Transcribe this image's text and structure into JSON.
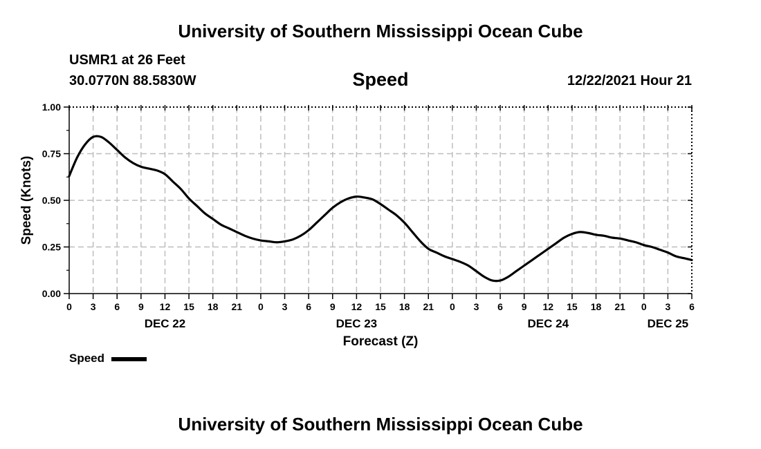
{
  "header": {
    "title": "University of Southern Mississippi Ocean Cube",
    "station": "USMR1 at 26 Feet",
    "coordinates": "30.0770N  88.5830W",
    "parameter": "Speed",
    "datetime": "12/22/2021 Hour 21"
  },
  "footer": {
    "title": "University of Southern Mississippi Ocean Cube"
  },
  "legend": {
    "label": "Speed"
  },
  "chart_data": {
    "type": "line",
    "title": "Speed",
    "xlabel": "Forecast (Z)",
    "ylabel": "Speed (Knots)",
    "ylim": [
      0,
      1.0
    ],
    "yticks": [
      0.0,
      0.25,
      0.5,
      0.75,
      1.0
    ],
    "ytick_labels": [
      "0.00",
      "0.25",
      "0.50",
      "0.75",
      "1.00"
    ],
    "xlim_hours": [
      0,
      78
    ],
    "xticks_hours": [
      0,
      3,
      6,
      9,
      12,
      15,
      18,
      21,
      24,
      27,
      30,
      33,
      36,
      39,
      42,
      45,
      48,
      51,
      54,
      57,
      60,
      63,
      66,
      69,
      72,
      75,
      78
    ],
    "xtick_labels": [
      "0",
      "3",
      "6",
      "9",
      "12",
      "15",
      "18",
      "21",
      "0",
      "3",
      "6",
      "9",
      "12",
      "15",
      "18",
      "21",
      "0",
      "3",
      "6",
      "9",
      "12",
      "15",
      "18",
      "21",
      "0",
      "3",
      "6"
    ],
    "day_labels": [
      {
        "label": "DEC 22",
        "hour": 12
      },
      {
        "label": "DEC 23",
        "hour": 36
      },
      {
        "label": "DEC 24",
        "hour": 60
      },
      {
        "label": "DEC 25",
        "hour": 75
      }
    ],
    "grid": true,
    "series": [
      {
        "name": "Speed",
        "color": "#000000",
        "hours": [
          0,
          1,
          2,
          3,
          4,
          5,
          6,
          7,
          8,
          9,
          10,
          11,
          12,
          13,
          14,
          15,
          16,
          17,
          18,
          19,
          20,
          21,
          22,
          23,
          24,
          25,
          26,
          27,
          28,
          29,
          30,
          31,
          32,
          33,
          34,
          35,
          36,
          37,
          38,
          39,
          40,
          41,
          42,
          43,
          44,
          45,
          46,
          47,
          48,
          49,
          50,
          51,
          52,
          53,
          54,
          55,
          56,
          57,
          58,
          59,
          60,
          61,
          62,
          63,
          64,
          65,
          66,
          67,
          68,
          69,
          70,
          71,
          72,
          73,
          74,
          75,
          76,
          77,
          78
        ],
        "values": [
          0.63,
          0.73,
          0.8,
          0.84,
          0.84,
          0.81,
          0.77,
          0.73,
          0.7,
          0.68,
          0.67,
          0.66,
          0.64,
          0.6,
          0.56,
          0.51,
          0.47,
          0.43,
          0.4,
          0.37,
          0.35,
          0.33,
          0.31,
          0.295,
          0.285,
          0.28,
          0.275,
          0.28,
          0.29,
          0.31,
          0.34,
          0.38,
          0.42,
          0.46,
          0.49,
          0.51,
          0.52,
          0.515,
          0.505,
          0.48,
          0.45,
          0.42,
          0.38,
          0.33,
          0.28,
          0.24,
          0.22,
          0.2,
          0.185,
          0.17,
          0.15,
          0.12,
          0.09,
          0.07,
          0.07,
          0.09,
          0.12,
          0.15,
          0.18,
          0.21,
          0.24,
          0.27,
          0.3,
          0.32,
          0.33,
          0.325,
          0.315,
          0.31,
          0.3,
          0.295,
          0.285,
          0.275,
          0.26,
          0.25,
          0.235,
          0.22,
          0.2,
          0.19,
          0.18
        ]
      }
    ]
  }
}
